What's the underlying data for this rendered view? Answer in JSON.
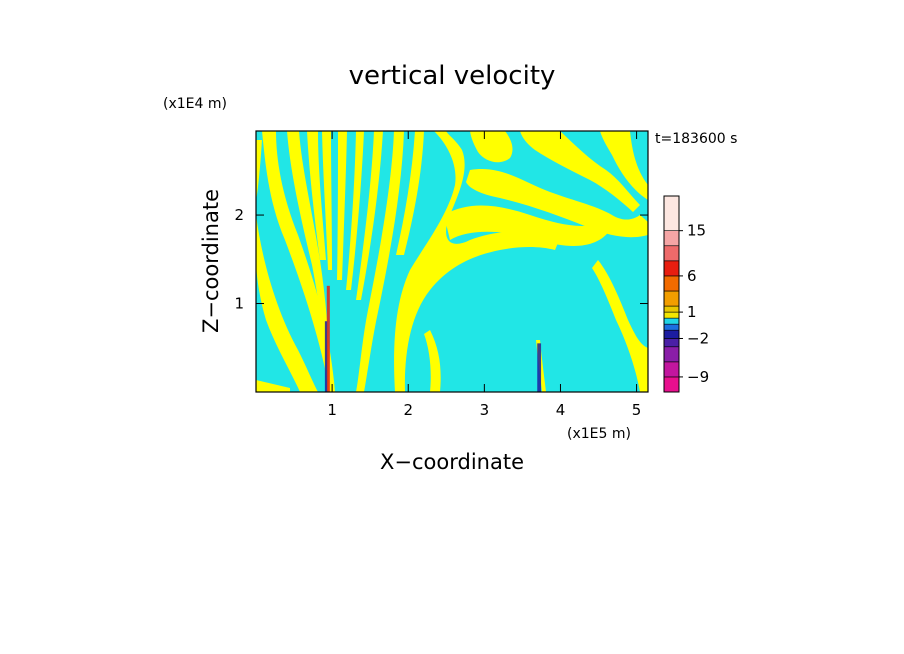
{
  "chart_data": {
    "type": "heatmap",
    "title": "vertical velocity",
    "xlabel": "X−coordinate",
    "ylabel": "Z−coordinate",
    "x_multiplier": "(x1E5 m)",
    "y_multiplier": "(x1E4 m)",
    "time_label": "t=183600 s",
    "xlim": [
      0,
      5.15
    ],
    "ylim": [
      0,
      2.95
    ],
    "x_ticks": [
      1,
      2,
      3,
      4,
      5
    ],
    "x_tick_labels": [
      "1",
      "2",
      "3",
      "4",
      "5"
    ],
    "y_ticks": [
      1,
      2
    ],
    "y_tick_labels": [
      "1",
      "2"
    ],
    "colorbar": {
      "levels": [
        -12,
        -9,
        -6,
        -4,
        -2,
        -1,
        0,
        0.5,
        1,
        1.5,
        3,
        6,
        9,
        12,
        15,
        20
      ],
      "colors": [
        "#e8108e",
        "#c2169e",
        "#8a1ea8",
        "#4a20a6",
        "#1c1ca0",
        "#1c6ee0",
        "#21d4e6",
        "#f3e600",
        "#e9c800",
        "#f29e00",
        "#f26b00",
        "#e81e10",
        "#ee6a6a",
        "#f5a5a5",
        "#fde7e1"
      ],
      "tick_values": [
        15,
        6,
        1,
        -2,
        -9
      ],
      "tick_labels": [
        "15",
        "6",
        "1",
        "−2",
        "−9"
      ]
    },
    "background_color": "#21e6e6",
    "band_color": "#ffff00",
    "features": [
      {
        "x": 0.95,
        "width": 0.04,
        "z_top": 1.2,
        "color": "#e81e10"
      },
      {
        "x": 0.92,
        "width": 0.03,
        "z_top": 0.8,
        "color": "#1c1ca0"
      },
      {
        "x": 3.72,
        "width": 0.05,
        "z_top": 0.55,
        "color": "#1c1ca0"
      }
    ]
  }
}
